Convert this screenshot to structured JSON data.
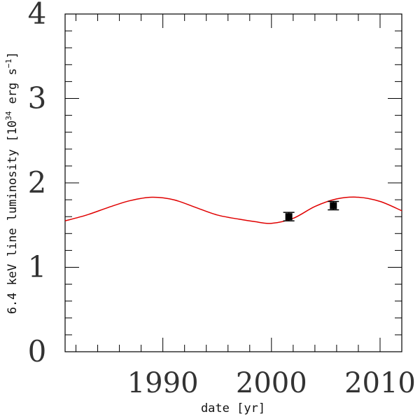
{
  "chart_data": {
    "type": "line",
    "title": "",
    "xlabel": "date [yr]",
    "ylabel": "6.4 keV line luminosity [10^34 erg s^-1]",
    "ylabel_parts": {
      "main": "6.4 keV line luminosity [10",
      "exp1": "34",
      "mid": " erg s",
      "exp2": "−1",
      "end": "]"
    },
    "xlim": [
      1981.0,
      2012.0
    ],
    "ylim": [
      0,
      4
    ],
    "x_ticks": [
      1990,
      2000,
      2010
    ],
    "x_tick_labels": [
      "1990",
      "2000",
      "2010"
    ],
    "y_ticks": [
      0,
      1,
      2,
      3,
      4
    ],
    "y_tick_labels": [
      "0",
      "1",
      "2",
      "3",
      "4"
    ],
    "grid": false,
    "series": [
      {
        "kind": "model-curve",
        "color": "#e00000",
        "x": [
          1981.0,
          1983.0,
          1985.0,
          1987.0,
          1989.0,
          1991.0,
          1993.0,
          1995.0,
          1997.0,
          1998.5,
          2000.0,
          2002.0,
          2004.0,
          2006.0,
          2008.0,
          2010.0,
          2012.0
        ],
        "y": [
          1.55,
          1.62,
          1.71,
          1.79,
          1.83,
          1.8,
          1.71,
          1.62,
          1.57,
          1.54,
          1.52,
          1.58,
          1.72,
          1.81,
          1.83,
          1.78,
          1.67
        ]
      },
      {
        "kind": "observations",
        "color": "#000000",
        "x": [
          2001.6,
          2005.7
        ],
        "y": [
          1.6,
          1.73
        ],
        "yerr": [
          0.05,
          0.05
        ]
      }
    ]
  }
}
